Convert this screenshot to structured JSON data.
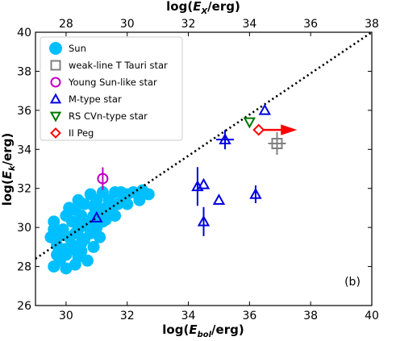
{
  "chart_data": {
    "type": "scatter",
    "panel_label": "(b)",
    "xlabel_bottom": {
      "prefix": "log(",
      "main": "E",
      "sub": "bol",
      "suffix": "/erg)"
    },
    "xlabel_top": {
      "prefix": "log(",
      "main": "E",
      "sub": "X",
      "suffix": "/erg)"
    },
    "ylabel": {
      "prefix": "log(",
      "main": "E",
      "sub": "k",
      "suffix": "/erg)"
    },
    "xlim": [
      29,
      40
    ],
    "ylim": [
      26,
      40
    ],
    "xlim_top": [
      27,
      38
    ],
    "xticks": [
      "30",
      "32",
      "34",
      "36",
      "38",
      "40"
    ],
    "xticks_top": [
      "28",
      "30",
      "32",
      "34",
      "36",
      "38"
    ],
    "yticks": [
      "26",
      "28",
      "30",
      "32",
      "34",
      "36",
      "38",
      "40"
    ],
    "grid": false,
    "legend_position": "top-left",
    "reference_line": {
      "style": "dotted",
      "points": [
        [
          29,
          28.4
        ],
        [
          40,
          40
        ]
      ]
    },
    "series": [
      {
        "name": "Sun",
        "marker": "circle-filled",
        "color": "#00bfff",
        "points": [
          [
            29.6,
            28.0
          ],
          [
            29.8,
            28.3
          ],
          [
            30.0,
            28.6
          ],
          [
            30.2,
            28.9
          ],
          [
            30.5,
            29.2
          ],
          [
            30.7,
            28.3
          ],
          [
            30.3,
            28.1
          ],
          [
            30.9,
            29.0
          ],
          [
            29.7,
            29.1
          ],
          [
            30.1,
            29.5
          ],
          [
            30.4,
            29.9
          ],
          [
            30.6,
            30.1
          ],
          [
            30.8,
            29.7
          ],
          [
            31.0,
            30.0
          ],
          [
            31.2,
            30.3
          ],
          [
            29.5,
            29.5
          ],
          [
            29.9,
            29.9
          ],
          [
            30.2,
            30.3
          ],
          [
            30.5,
            30.6
          ],
          [
            30.9,
            30.6
          ],
          [
            31.1,
            30.9
          ],
          [
            31.3,
            31.0
          ],
          [
            31.5,
            31.0
          ],
          [
            29.6,
            30.3
          ],
          [
            30.0,
            30.6
          ],
          [
            30.3,
            30.9
          ],
          [
            30.6,
            31.2
          ],
          [
            31.0,
            31.4
          ],
          [
            31.4,
            31.4
          ],
          [
            31.7,
            31.2
          ],
          [
            31.9,
            31.5
          ],
          [
            30.4,
            31.4
          ],
          [
            30.8,
            31.7
          ],
          [
            31.2,
            31.8
          ],
          [
            31.6,
            31.8
          ],
          [
            32.0,
            31.7
          ],
          [
            32.2,
            31.8
          ],
          [
            32.5,
            31.9
          ],
          [
            32.7,
            31.7
          ],
          [
            32.4,
            31.4
          ],
          [
            32.0,
            31.2
          ],
          [
            31.6,
            30.6
          ],
          [
            31.3,
            30.4
          ],
          [
            30.9,
            31.1
          ],
          [
            30.7,
            30.3
          ],
          [
            30.0,
            28.9
          ],
          [
            30.4,
            28.5
          ],
          [
            29.8,
            29.6
          ],
          [
            30.2,
            29.1
          ],
          [
            31.1,
            29.5
          ],
          [
            30.4,
            30.1
          ],
          [
            29.6,
            29.9
          ],
          [
            30.1,
            31.0
          ],
          [
            31.8,
            31.8
          ],
          [
            30.5,
            28.8
          ],
          [
            30.0,
            27.9
          ],
          [
            31.4,
            30.7
          ],
          [
            29.7,
            28.6
          ],
          [
            30.6,
            29.4
          ],
          [
            30.3,
            29.7
          ]
        ]
      },
      {
        "name": "weak-line T Tauri star",
        "marker": "square-open",
        "color": "#808080",
        "points": [
          [
            36.9,
            34.3
          ]
        ]
      },
      {
        "name": "Young Sun-like star",
        "marker": "circle-open",
        "color": "#c000c0",
        "points": [
          [
            31.2,
            32.5
          ]
        ]
      },
      {
        "name": "M-type star",
        "marker": "triangle-up-open",
        "color": "#0000dd",
        "points": [
          [
            31.0,
            30.5
          ],
          [
            34.3,
            32.1
          ],
          [
            34.5,
            32.2
          ],
          [
            34.5,
            30.3
          ],
          [
            35.0,
            31.4
          ],
          [
            35.2,
            34.5
          ],
          [
            36.2,
            31.7
          ],
          [
            36.5,
            36.0
          ]
        ]
      },
      {
        "name": "RS CVn-type star",
        "marker": "triangle-down-open",
        "color": "#007700",
        "points": [
          [
            36.0,
            35.4
          ]
        ]
      },
      {
        "name": "II Peg",
        "marker": "diamond-open",
        "color": "#ff0000",
        "points": [
          [
            36.3,
            35.0
          ]
        ]
      }
    ]
  }
}
